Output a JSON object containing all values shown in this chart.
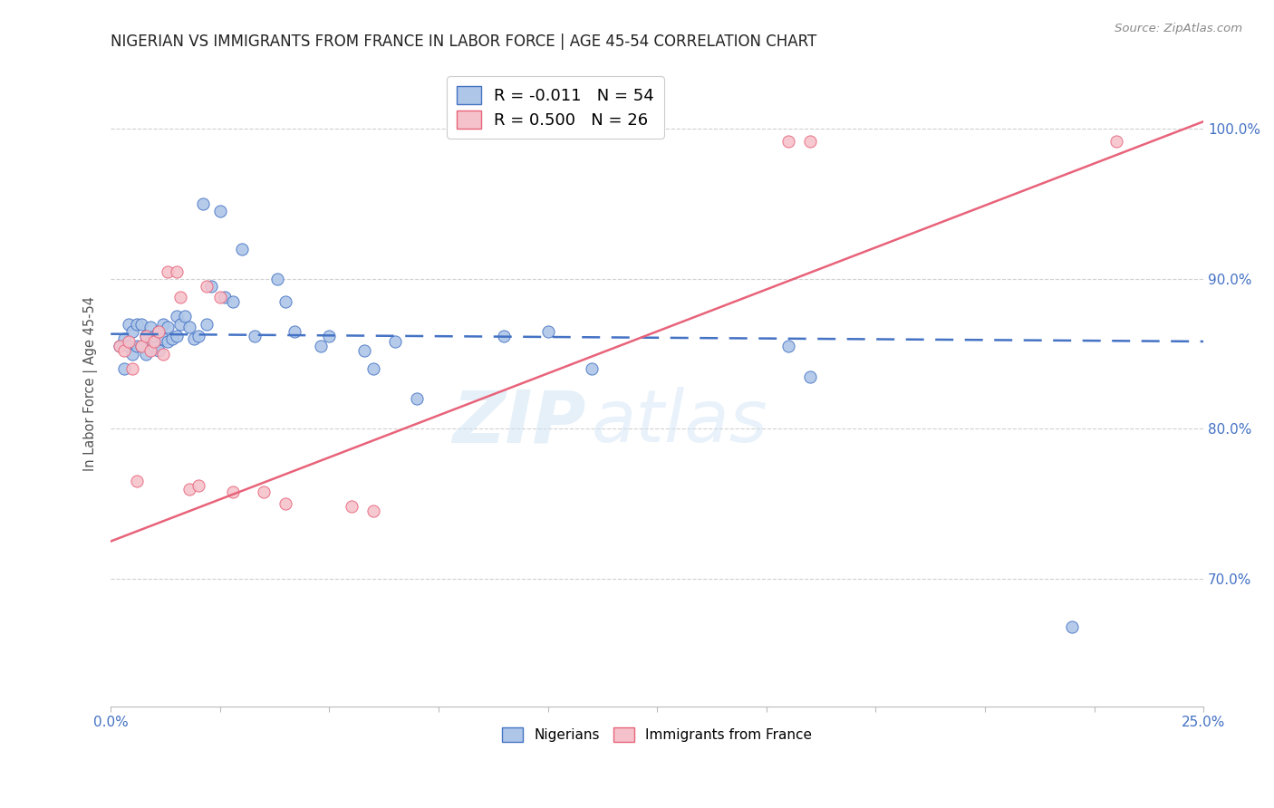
{
  "title": "NIGERIAN VS IMMIGRANTS FROM FRANCE IN LABOR FORCE | AGE 45-54 CORRELATION CHART",
  "source": "Source: ZipAtlas.com",
  "ylabel": "In Labor Force | Age 45-54",
  "ytick_labels": [
    "100.0%",
    "90.0%",
    "80.0%",
    "70.0%"
  ],
  "ytick_values": [
    1.0,
    0.9,
    0.8,
    0.7
  ],
  "xmin": 0.0,
  "xmax": 0.25,
  "ymin": 0.615,
  "ymax": 1.045,
  "blue_color": "#aec6e8",
  "pink_color": "#f5c2cb",
  "blue_line_color": "#4472c4",
  "pink_line_color": "#e8637a",
  "legend_blue_text": "R = -0.011   N = 54",
  "legend_pink_text": "R = 0.500   N = 26",
  "watermark_zip": "ZIP",
  "watermark_atlas": "atlas",
  "nigerians_x": [
    0.002,
    0.003,
    0.003,
    0.004,
    0.004,
    0.005,
    0.005,
    0.006,
    0.006,
    0.007,
    0.007,
    0.008,
    0.008,
    0.009,
    0.009,
    0.01,
    0.01,
    0.011,
    0.011,
    0.012,
    0.012,
    0.013,
    0.013,
    0.014,
    0.015,
    0.015,
    0.016,
    0.017,
    0.018,
    0.019,
    0.02,
    0.021,
    0.022,
    0.023,
    0.025,
    0.026,
    0.028,
    0.03,
    0.033,
    0.038,
    0.04,
    0.042,
    0.048,
    0.05,
    0.058,
    0.06,
    0.065,
    0.07,
    0.09,
    0.1,
    0.11,
    0.155,
    0.16,
    0.22
  ],
  "nigerians_y": [
    0.855,
    0.84,
    0.86,
    0.855,
    0.87,
    0.85,
    0.865,
    0.855,
    0.87,
    0.855,
    0.87,
    0.862,
    0.85,
    0.858,
    0.868,
    0.855,
    0.862,
    0.852,
    0.865,
    0.86,
    0.87,
    0.858,
    0.868,
    0.86,
    0.862,
    0.875,
    0.87,
    0.875,
    0.868,
    0.86,
    0.862,
    0.95,
    0.87,
    0.895,
    0.945,
    0.888,
    0.885,
    0.92,
    0.862,
    0.9,
    0.885,
    0.865,
    0.855,
    0.862,
    0.852,
    0.84,
    0.858,
    0.82,
    0.862,
    0.865,
    0.84,
    0.855,
    0.835,
    0.668
  ],
  "france_x": [
    0.002,
    0.003,
    0.004,
    0.005,
    0.006,
    0.007,
    0.008,
    0.009,
    0.01,
    0.011,
    0.012,
    0.013,
    0.015,
    0.016,
    0.018,
    0.02,
    0.022,
    0.025,
    0.028,
    0.035,
    0.04,
    0.055,
    0.06,
    0.155,
    0.16,
    0.23
  ],
  "france_y": [
    0.855,
    0.852,
    0.858,
    0.84,
    0.765,
    0.855,
    0.862,
    0.852,
    0.858,
    0.865,
    0.85,
    0.905,
    0.905,
    0.888,
    0.76,
    0.762,
    0.895,
    0.888,
    0.758,
    0.758,
    0.75,
    0.748,
    0.745,
    0.992,
    0.992,
    0.992
  ],
  "blue_R": -0.011,
  "pink_R": 0.5,
  "background_color": "#ffffff",
  "grid_color": "#d0d0d0"
}
